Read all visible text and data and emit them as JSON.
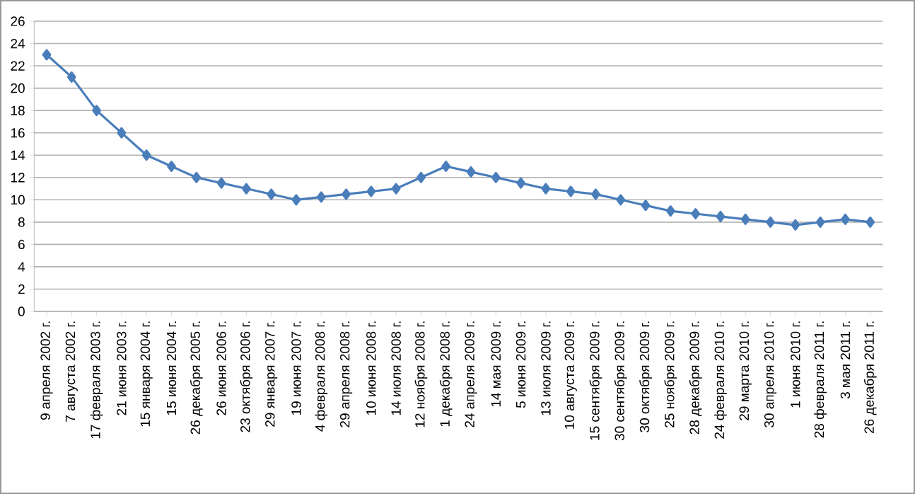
{
  "chart_data": {
    "type": "line",
    "categories": [
      "9 апреля 2002 г.",
      "7 августа 2002 г.",
      "17 февраля 2003 г.",
      "21 июня 2003 г.",
      "15 января 2004 г.",
      "15 июня 2004 г.",
      "26 декабря 2005 г.",
      "26 июня 2006 г.",
      "23 октября 2006 г.",
      "29 января 2007 г.",
      "19 июня 2007 г.",
      "4 февраля 2008 г.",
      "29 апреля 2008 г.",
      "10 июня 2008 г.",
      "14 июля 2008 г.",
      "12 ноября 2008 г.",
      "1 декабря 2008 г.",
      "24 апреля 2009 г.",
      "14 мая 2009 г.",
      "5 июня 2009 г.",
      "13 июля 2009 г.",
      "10 августа 2009 г.",
      "15 сентября 2009 г.",
      "30 сентября 2009 г.",
      "30 октября 2009 г.",
      "25 ноября 2009 г.",
      "28 декабря 2009 г.",
      "24 февраля 2010 г.",
      "29 марта 2010 г.",
      "30 апреля 2010 г.",
      "1 июня 2010 г.",
      "28 февраля 2011 г.",
      "3 мая 2011 г.",
      "26 декабря 2011 г."
    ],
    "series": [
      {
        "color": "#4a7ebb",
        "values": [
          23,
          21,
          18,
          16,
          14,
          13,
          12,
          11.5,
          11,
          10.5,
          10,
          10.25,
          10.5,
          10.75,
          11,
          12,
          13,
          12.5,
          12,
          11.5,
          11,
          10.75,
          10.5,
          10,
          9.5,
          9,
          8.75,
          8.5,
          8.25,
          8,
          7.75,
          8,
          8.25,
          8
        ]
      }
    ],
    "ylim": [
      0,
      26
    ],
    "yticks": [
      0,
      2,
      4,
      6,
      8,
      10,
      12,
      14,
      16,
      18,
      20,
      22,
      24,
      26
    ],
    "grid": "y",
    "marker": "diamond",
    "line_style": "solid"
  }
}
